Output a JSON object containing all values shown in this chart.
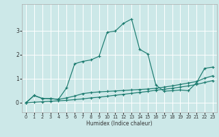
{
  "xlabel": "Humidex (Indice chaleur)",
  "bg_color": "#cce8e8",
  "grid_color": "#ffffff",
  "line_color": "#1a7a6e",
  "xlim": [
    -0.5,
    23.5
  ],
  "ylim": [
    -0.4,
    4.1
  ],
  "yticks": [
    0,
    1,
    2,
    3
  ],
  "xticks": [
    0,
    1,
    2,
    3,
    4,
    5,
    6,
    7,
    8,
    9,
    10,
    11,
    12,
    13,
    14,
    15,
    16,
    17,
    18,
    19,
    20,
    21,
    22,
    23
  ],
  "series_flat_x": [
    0,
    1,
    2,
    3,
    4,
    5,
    6,
    7,
    8,
    9,
    10,
    11,
    12,
    13,
    14,
    15,
    16,
    17,
    18,
    19,
    20,
    21,
    22,
    23
  ],
  "series_flat_y": [
    0.0,
    0.02,
    0.04,
    0.06,
    0.08,
    0.1,
    0.13,
    0.16,
    0.2,
    0.23,
    0.27,
    0.31,
    0.35,
    0.39,
    0.43,
    0.47,
    0.52,
    0.56,
    0.6,
    0.65,
    0.7,
    0.76,
    0.84,
    0.92
  ],
  "series_mid_x": [
    0,
    1,
    2,
    3,
    4,
    5,
    6,
    7,
    8,
    9,
    10,
    11,
    12,
    13,
    14,
    15,
    16,
    17,
    18,
    19,
    20,
    21,
    22,
    23
  ],
  "series_mid_y": [
    0.0,
    0.3,
    0.18,
    0.17,
    0.14,
    0.2,
    0.28,
    0.38,
    0.42,
    0.45,
    0.47,
    0.49,
    0.51,
    0.53,
    0.55,
    0.57,
    0.6,
    0.65,
    0.7,
    0.76,
    0.82,
    0.88,
    1.02,
    1.12
  ],
  "series_peak_x": [
    0,
    1,
    2,
    3,
    4,
    5,
    6,
    7,
    8,
    9,
    10,
    11,
    12,
    13,
    14,
    15,
    16,
    17,
    18,
    19,
    20,
    21,
    22,
    23
  ],
  "series_peak_y": [
    0.0,
    0.3,
    0.18,
    0.17,
    0.14,
    0.62,
    1.62,
    1.72,
    1.78,
    1.93,
    2.93,
    2.98,
    3.3,
    3.48,
    2.22,
    2.03,
    0.73,
    0.48,
    0.5,
    0.53,
    0.5,
    0.83,
    1.43,
    1.48
  ]
}
